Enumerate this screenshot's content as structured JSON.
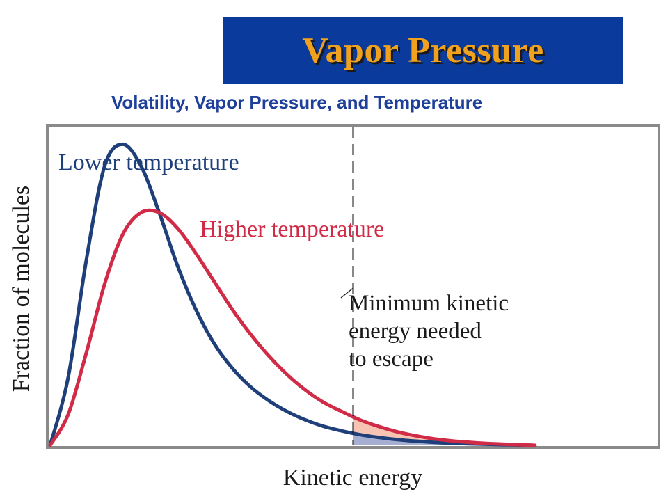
{
  "slide": {
    "banner_title": "Vapor Pressure",
    "subtitle": "Volatility, Vapor Pressure, and Temperature"
  },
  "chart_data": {
    "type": "line",
    "xlabel": "Kinetic energy",
    "ylabel": "Fraction of molecules",
    "grid": false,
    "xlim": [
      0,
      10
    ],
    "ylim": [
      0,
      1
    ],
    "threshold": {
      "x": 5.0,
      "label_lines": [
        "Minimum kinetic",
        "energy needed",
        "to escape"
      ]
    },
    "series": [
      {
        "name": "Lower temperature",
        "color": "#1f3f7a",
        "shade_color": "#a6aed2",
        "x": [
          0,
          0.3,
          0.6,
          0.9,
          1.2,
          1.5,
          1.8,
          2.1,
          2.4,
          2.7,
          3.0,
          3.3,
          3.6,
          3.9,
          4.2,
          4.5,
          4.8,
          5.1,
          5.4,
          5.7,
          6.0,
          6.3,
          6.6,
          6.9,
          7.2,
          7.5,
          7.8,
          8.0
        ],
        "values": [
          0,
          0.22,
          0.6,
          0.9,
          0.97,
          0.9,
          0.75,
          0.58,
          0.44,
          0.33,
          0.25,
          0.19,
          0.145,
          0.11,
          0.083,
          0.062,
          0.047,
          0.035,
          0.026,
          0.019,
          0.014,
          0.01,
          0.007,
          0.005,
          0.0035,
          0.002,
          0.001,
          0
        ]
      },
      {
        "name": "Higher temperature",
        "color": "#d02b47",
        "shade_color": "#f7c4b4",
        "x": [
          0,
          0.3,
          0.6,
          0.9,
          1.2,
          1.5,
          1.8,
          2.1,
          2.4,
          2.7,
          3.0,
          3.3,
          3.6,
          3.9,
          4.2,
          4.5,
          4.8,
          5.1,
          5.4,
          5.7,
          6.0,
          6.3,
          6.6,
          6.9,
          7.2,
          7.5,
          7.8,
          8.0
        ],
        "values": [
          0,
          0.1,
          0.3,
          0.52,
          0.68,
          0.75,
          0.75,
          0.7,
          0.62,
          0.53,
          0.44,
          0.36,
          0.29,
          0.23,
          0.18,
          0.14,
          0.11,
          0.083,
          0.062,
          0.045,
          0.032,
          0.022,
          0.015,
          0.01,
          0.006,
          0.0035,
          0.0015,
          0
        ]
      }
    ]
  }
}
